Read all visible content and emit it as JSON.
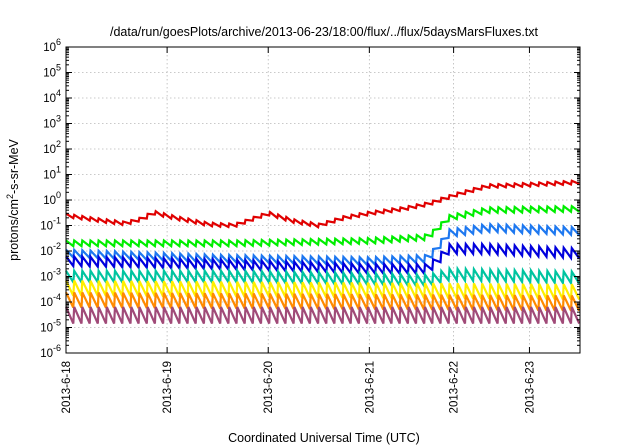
{
  "chart_data": {
    "type": "line",
    "title": "/data/run/goesPlots/archive/2013-06-23/18:00/flux/../flux/5daysMarsFluxes.txt",
    "xlabel": "Coordinated Universal Time (UTC)",
    "ylabel": {
      "main": "protons/cm",
      "sup": "2",
      "rest": "-s-sr-MeV"
    },
    "yscale": "log",
    "ylim_exp": [
      -6,
      6
    ],
    "y_ticks": [
      {
        "exp": -6
      },
      {
        "exp": -5
      },
      {
        "exp": -4
      },
      {
        "exp": -3
      },
      {
        "exp": -2
      },
      {
        "exp": -1
      },
      {
        "exp": 0
      },
      {
        "exp": 1
      },
      {
        "exp": 2
      },
      {
        "exp": 3
      },
      {
        "exp": 4
      },
      {
        "exp": 5
      },
      {
        "exp": 6
      }
    ],
    "xlim_days": [
      0,
      6.1
    ],
    "x_ticks": [
      {
        "label": "2013-6-18",
        "day": 0
      },
      {
        "label": "2013-6-19",
        "day": 1.2
      },
      {
        "label": "2013-6-20",
        "day": 2.4
      },
      {
        "label": "2013-6-21",
        "day": 3.6
      },
      {
        "label": "2013-6-22",
        "day": 4.6
      },
      {
        "label": "2013-6-23",
        "day": 5.5
      }
    ],
    "grid": true,
    "legend": "none",
    "n_teeth": 63,
    "series": [
      {
        "color": "#e00000",
        "amp": 0.14,
        "base": [
          [
            0,
            0.25
          ],
          [
            0.4,
            0.16
          ],
          [
            0.7,
            0.12
          ],
          [
            0.95,
            0.2
          ],
          [
            1.0,
            0.35
          ],
          [
            1.3,
            0.2
          ],
          [
            1.7,
            0.11
          ],
          [
            2.0,
            0.1
          ],
          [
            2.4,
            0.3
          ],
          [
            2.7,
            0.15
          ],
          [
            3.0,
            0.1
          ],
          [
            3.3,
            0.2
          ],
          [
            3.6,
            0.3
          ],
          [
            4.0,
            0.45
          ],
          [
            4.3,
            0.7
          ],
          [
            4.6,
            1.5
          ],
          [
            5.0,
            3.5
          ],
          [
            5.5,
            4.0
          ],
          [
            6.1,
            5.0
          ]
        ]
      },
      {
        "color": "#00ee00",
        "amp": 0.22,
        "base": [
          [
            0,
            0.02
          ],
          [
            2.0,
            0.02
          ],
          [
            3.6,
            0.025
          ],
          [
            4.3,
            0.035
          ],
          [
            4.55,
            0.2
          ],
          [
            5.0,
            0.4
          ],
          [
            6.1,
            0.45
          ]
        ]
      },
      {
        "color": "#1e78f0",
        "amp": 0.3,
        "base": [
          [
            0,
            0.008
          ],
          [
            1.8,
            0.005
          ],
          [
            3.6,
            0.004
          ],
          [
            4.3,
            0.005
          ],
          [
            4.55,
            0.05
          ],
          [
            5.0,
            0.08
          ],
          [
            6.1,
            0.06
          ]
        ]
      },
      {
        "color": "#0000dd",
        "amp": 0.38,
        "base": [
          [
            0,
            0.004
          ],
          [
            1.8,
            0.003
          ],
          [
            3.6,
            0.002
          ],
          [
            4.3,
            0.002
          ],
          [
            4.55,
            0.012
          ],
          [
            5.0,
            0.012
          ],
          [
            6.1,
            0.008
          ]
        ]
      },
      {
        "color": "#00c4a0",
        "amp": 0.45,
        "base": [
          [
            0,
            0.001
          ],
          [
            2.0,
            0.001
          ],
          [
            3.6,
            0.0008
          ],
          [
            4.3,
            0.0007
          ],
          [
            4.55,
            0.0012
          ],
          [
            6.1,
            0.0009
          ]
        ]
      },
      {
        "color": "#ffee00",
        "amp": 0.6,
        "base": [
          [
            0,
            0.00035
          ],
          [
            6.1,
            0.00025
          ]
        ]
      },
      {
        "color": "#ff8a00",
        "amp": 0.6,
        "base": [
          [
            0,
            0.00012
          ],
          [
            6.1,
            9e-05
          ]
        ]
      },
      {
        "color": "#a04a78",
        "amp": 0.65,
        "base": [
          [
            0,
            3e-05
          ],
          [
            6.1,
            3e-05
          ]
        ]
      }
    ]
  }
}
